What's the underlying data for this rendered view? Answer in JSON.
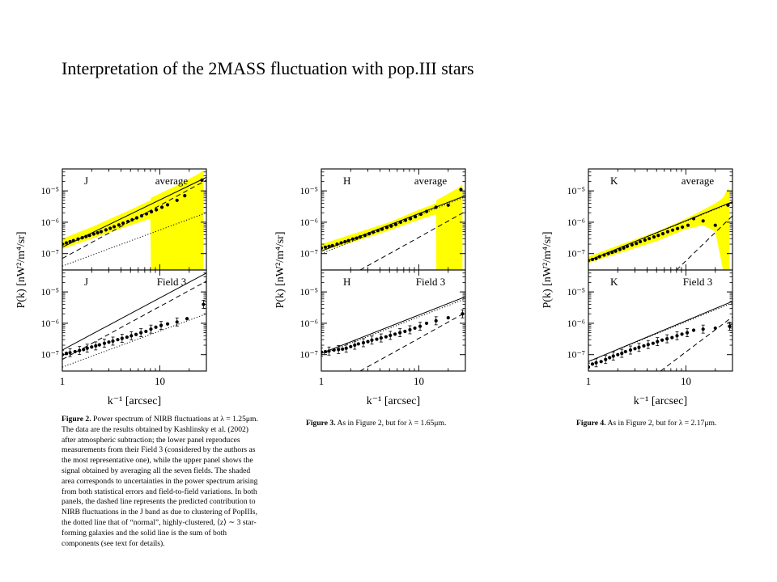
{
  "slide": {
    "title": "Interpretation of the 2MASS fluctuation with pop.III stars"
  },
  "figures": [
    {
      "caption_label": "Figure 2.",
      "caption_text": "Power spectrum of NIRB fluctuations at λ = 1.25μm. The data are the results obtained by Kashlinsky et al. (2002) after atmospheric subtraction; the lower panel reproduces measurements from their Field 3 (considered by the authors as the most representative one), while the upper panel shows the signal obtained by averaging all the seven fields. The shaded area corresponds to uncertainties in the power spectrum arising from both statistical errors and field-to-field variations. In both panels, the dashed line represents the predicted contribution to NIRB fluctuations in the J band as due to clustering of PopIIIs, the dotted line that of “normal”, highly-clustered, ⟨z⟩ ∼ 3 star-forming galaxies and the solid line is the sum of both components (see text for details)."
    },
    {
      "caption_label": "Figure 3.",
      "caption_text": "As in Figure 2, but for λ = 1.65μm."
    },
    {
      "caption_label": "Figure 4.",
      "caption_text": "As in Figure 2, but for λ = 2.17μm."
    }
  ],
  "chart_data": [
    {
      "type": "scatter",
      "band": "J",
      "xlabel": "k⁻¹ [arcsec]",
      "ylabel": "P(k) [nW²/m⁴/sr]",
      "x_scale": "log",
      "y_scale": "log",
      "xlim": [
        1,
        30
      ],
      "x_ticks": [
        "1",
        "10"
      ],
      "y_ticks": [
        "10⁻⁷",
        "10⁻⁶",
        "10⁻⁵"
      ],
      "panels": [
        {
          "band_label": "J",
          "panel_label": "average",
          "ylim": [
            3e-08,
            5e-05
          ],
          "shaded_band": {
            "x": [
              1,
              2,
              5,
              8,
              8.1,
              15,
              25,
              28
            ],
            "upper": [
              3e-07,
              7e-07,
              2.5e-06,
              5e-06,
              6e-06,
              1.5e-05,
              3.5e-05,
              4.5e-05
            ],
            "lower": [
              1.4e-07,
              3e-07,
              8e-07,
              1.3e-06,
              3e-08,
              3e-08,
              3e-08,
              3e-08
            ]
          },
          "points": {
            "x": [
              1,
              1.1,
              1.2,
              1.3,
              1.45,
              1.6,
              1.75,
              1.9,
              2.1,
              2.3,
              2.5,
              2.8,
              3.1,
              3.4,
              3.8,
              4.2,
              4.7,
              5.2,
              5.8,
              6.5,
              7.3,
              8.2,
              9.2,
              10.5,
              12,
              15,
              18,
              27
            ],
            "y": [
              2e-07,
              2.2e-07,
              2.4e-07,
              2.6e-07,
              2.9e-07,
              3.2e-07,
              3.5e-07,
              3.8e-07,
              4.2e-07,
              4.6e-07,
              5e-07,
              5.7e-07,
              6.4e-07,
              7.2e-07,
              8.2e-07,
              9.3e-07,
              1.06e-06,
              1.2e-06,
              1.38e-06,
              1.6e-06,
              1.85e-06,
              2.15e-06,
              2.5e-06,
              3e-06,
              3.6e-06,
              5e-06,
              7e-06,
              2.2e-05
            ]
          },
          "solid": [
            [
              1,
              1.6e-07
            ],
            [
              30,
              2.7e-05
            ]
          ],
          "dashed": [
            [
              1,
              7e-08
            ],
            [
              30,
              2.2e-05
            ]
          ],
          "dotted": [
            [
              1,
              4e-08
            ],
            [
              30,
              2e-06
            ]
          ]
        },
        {
          "band_label": "J",
          "panel_label": "Field 3",
          "ylim": [
            3e-08,
            5e-05
          ],
          "points": {
            "x": [
              1,
              1.1,
              1.2,
              1.35,
              1.5,
              1.65,
              1.8,
              2,
              2.2,
              2.4,
              2.7,
              3,
              3.3,
              3.7,
              4.1,
              4.6,
              5.1,
              5.7,
              6.4,
              7.2,
              8.1,
              9.1,
              10.3,
              12,
              15,
              19,
              28
            ],
            "y": [
              1e-07,
              1.1e-07,
              1.15e-07,
              1.25e-07,
              1.35e-07,
              1.45e-07,
              1.6e-07,
              1.75e-07,
              1.9e-07,
              2.05e-07,
              2.3e-07,
              2.5e-07,
              2.7e-07,
              3e-07,
              3.3e-07,
              3.6e-07,
              4e-07,
              4.4e-07,
              5e-07,
              5.5e-07,
              6.5e-07,
              7.5e-07,
              8.5e-07,
              9.5e-07,
              1.1e-06,
              1.4e-06,
              4e-06
            ]
          },
          "solid": [
            [
              1,
              1.4e-07
            ],
            [
              30,
              4e-05
            ]
          ],
          "dashed": [
            [
              1,
              7e-08
            ],
            [
              30,
              2.2e-05
            ]
          ],
          "dotted": [
            [
              1,
              4e-08
            ],
            [
              30,
              2e-06
            ]
          ]
        }
      ]
    },
    {
      "type": "scatter",
      "band": "H",
      "xlabel": "k⁻¹ [arcsec]",
      "ylabel": "P(k) [nW²/m⁴/sr]",
      "x_scale": "log",
      "y_scale": "log",
      "xlim": [
        1,
        30
      ],
      "x_ticks": [
        "1",
        "10"
      ],
      "y_ticks": [
        "10⁻⁷",
        "10⁻⁶",
        "10⁻⁵"
      ],
      "panels": [
        {
          "band_label": "H",
          "panel_label": "average",
          "ylim": [
            3e-08,
            5e-05
          ],
          "shaded_band": {
            "x": [
              1,
              2,
              5,
              10,
              15,
              15.1,
              25,
              28
            ],
            "upper": [
              2e-07,
              4e-07,
              1e-06,
              2.5e-06,
              4e-06,
              5e-06,
              1.2e-05,
              1.6e-05
            ],
            "lower": [
              1.2e-07,
              2.2e-07,
              5.5e-07,
              1.2e-06,
              1.8e-06,
              3e-08,
              3e-08,
              3e-08
            ]
          },
          "points": {
            "x": [
              1,
              1.1,
              1.2,
              1.3,
              1.45,
              1.6,
              1.75,
              1.9,
              2.1,
              2.3,
              2.5,
              2.8,
              3.1,
              3.4,
              3.8,
              4.2,
              4.7,
              5.2,
              5.8,
              6.5,
              7.3,
              8.2,
              9.2,
              10.5,
              12,
              15,
              20,
              27
            ],
            "y": [
              1.5e-07,
              1.6e-07,
              1.7e-07,
              1.8e-07,
              2e-07,
              2.2e-07,
              2.4e-07,
              2.6e-07,
              2.9e-07,
              3.1e-07,
              3.4e-07,
              3.8e-07,
              4.3e-07,
              4.8e-07,
              5.4e-07,
              6e-07,
              6.8e-07,
              7.5e-07,
              8.5e-07,
              1e-06,
              1.15e-06,
              1.3e-06,
              1.5e-06,
              1.8e-06,
              2.2e-06,
              3e-06,
              3.5e-06,
              1.1e-05
            ]
          },
          "solid": [
            [
              1,
              1.2e-07
            ],
            [
              30,
              7e-06
            ]
          ],
          "dashed": [
            [
              2.5,
              3e-08
            ],
            [
              30,
              2.2e-06
            ]
          ],
          "dotted": [
            [
              1,
              1e-07
            ],
            [
              30,
              6.5e-06
            ]
          ]
        },
        {
          "band_label": "H",
          "panel_label": "Field 3",
          "ylim": [
            3e-08,
            5e-05
          ],
          "points": {
            "x": [
              1,
              1.1,
              1.2,
              1.35,
              1.5,
              1.65,
              1.8,
              2,
              2.2,
              2.4,
              2.7,
              3,
              3.3,
              3.7,
              4.1,
              4.6,
              5.1,
              5.7,
              6.4,
              7.2,
              8.1,
              9.1,
              10.3,
              12,
              15,
              20,
              28
            ],
            "y": [
              1.2e-07,
              1.25e-07,
              1.3e-07,
              1.4e-07,
              1.45e-07,
              1.5e-07,
              1.6e-07,
              1.8e-07,
              2e-07,
              2.2e-07,
              2.4e-07,
              2.6e-07,
              2.9e-07,
              3.1e-07,
              3.4e-07,
              3.7e-07,
              4.1e-07,
              4.5e-07,
              5e-07,
              5.5e-07,
              6.2e-07,
              7e-07,
              8e-07,
              1e-06,
              1.2e-06,
              1.5e-06,
              2e-06
            ]
          },
          "solid": [
            [
              1,
              1.1e-07
            ],
            [
              30,
              7e-06
            ]
          ],
          "dashed": [
            [
              2.5,
              3e-08
            ],
            [
              30,
              2.2e-06
            ]
          ],
          "dotted": [
            [
              1,
              1e-07
            ],
            [
              30,
              6e-06
            ]
          ]
        }
      ]
    },
    {
      "type": "scatter",
      "band": "K",
      "xlabel": "k⁻¹ [arcsec]",
      "ylabel": "P(k) [nW²/m⁴/sr]",
      "x_scale": "log",
      "y_scale": "log",
      "xlim": [
        1,
        30
      ],
      "x_ticks": [
        "1",
        "10"
      ],
      "y_ticks": [
        "10⁻⁷",
        "10⁻⁶",
        "10⁻⁵"
      ],
      "panels": [
        {
          "band_label": "K",
          "panel_label": "average",
          "ylim": [
            3e-08,
            5e-05
          ],
          "shaded_band": {
            "x": [
              1,
              2,
              5,
              10,
              15,
              20,
              24,
              27,
              28
            ],
            "upper": [
              8e-08,
              1.8e-07,
              5e-07,
              1.3e-06,
              2.5e-06,
              4e-06,
              6e-06,
              1.2e-05,
              1e-05
            ],
            "lower": [
              5e-08,
              1e-07,
              2.5e-07,
              6e-07,
              8e-07,
              5e-07,
              3e-08,
              3e-08,
              3e-08
            ]
          },
          "points": {
            "x": [
              1,
              1.1,
              1.2,
              1.3,
              1.45,
              1.6,
              1.75,
              1.9,
              2.1,
              2.3,
              2.5,
              2.8,
              3.1,
              3.4,
              3.8,
              4.2,
              4.7,
              5.2,
              5.8,
              6.5,
              7.3,
              8.2,
              9.2,
              10.5,
              12,
              15,
              20,
              27
            ],
            "y": [
              6e-08,
              6.5e-08,
              7e-08,
              8e-08,
              9e-08,
              1e-07,
              1.1e-07,
              1.2e-07,
              1.35e-07,
              1.5e-07,
              1.7e-07,
              1.9e-07,
              2.1e-07,
              2.4e-07,
              2.7e-07,
              3e-07,
              3.4e-07,
              3.8e-07,
              4.3e-07,
              5e-07,
              5.6e-07,
              6.3e-07,
              7e-07,
              8e-07,
              1.3e-06,
              1.1e-06,
              8e-07,
              3.5e-06
            ]
          },
          "solid": [
            [
              1,
              6e-08
            ],
            [
              30,
              4.5e-06
            ]
          ],
          "dashed": [
            [
              8,
              3e-08
            ],
            [
              30,
              1.6e-06
            ]
          ],
          "dotted": [
            [
              1,
              6e-08
            ],
            [
              30,
              4.3e-06
            ]
          ]
        },
        {
          "band_label": "K",
          "panel_label": "Field 3",
          "ylim": [
            3e-08,
            5e-05
          ],
          "points": {
            "x": [
              1,
              1.1,
              1.2,
              1.35,
              1.5,
              1.65,
              1.8,
              2,
              2.2,
              2.4,
              2.7,
              3,
              3.3,
              3.7,
              4.1,
              4.6,
              5.1,
              5.7,
              6.4,
              7.2,
              8.1,
              9.1,
              10.3,
              12,
              15,
              20,
              28
            ],
            "y": [
              4e-08,
              5e-08,
              5.5e-08,
              6e-08,
              7e-08,
              8e-08,
              9e-08,
              1e-07,
              1.1e-07,
              1.25e-07,
              1.4e-07,
              1.55e-07,
              1.7e-07,
              1.9e-07,
              2.1e-07,
              2.3e-07,
              2.6e-07,
              2.9e-07,
              3.2e-07,
              3.5e-07,
              4e-07,
              4.5e-07,
              5e-07,
              6e-07,
              6.5e-07,
              7e-07,
              8e-07
            ]
          },
          "solid": [
            [
              1,
              6e-08
            ],
            [
              30,
              5e-06
            ]
          ],
          "dashed": [
            [
              5.5,
              3e-08
            ],
            [
              30,
              1.6e-06
            ]
          ],
          "dotted": [
            [
              1,
              6e-08
            ],
            [
              30,
              4.5e-06
            ]
          ]
        }
      ]
    }
  ]
}
